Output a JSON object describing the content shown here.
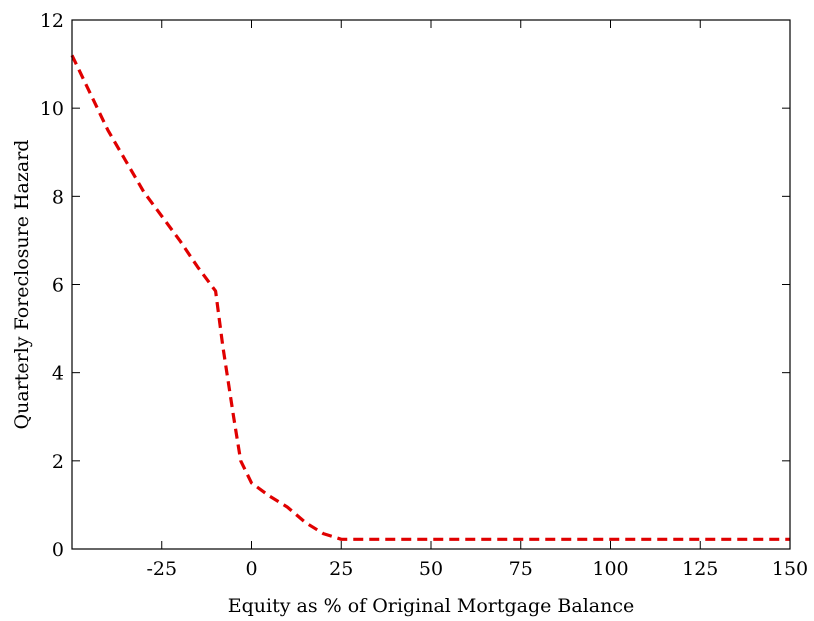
{
  "chart_data": {
    "type": "line",
    "title": "",
    "xlabel": "Equity as % of Original Mortgage Balance",
    "ylabel": "Quarterly Foreclosure Hazard",
    "xlim": [
      -50,
      150
    ],
    "ylim": [
      0,
      12
    ],
    "x_ticks": [
      -25,
      0,
      25,
      50,
      75,
      100,
      125,
      150
    ],
    "x_tick_labels": [
      "-25",
      "0",
      "25",
      "50",
      "75",
      "100",
      "125",
      "150"
    ],
    "y_ticks": [
      0,
      2,
      4,
      6,
      8,
      10,
      12
    ],
    "y_tick_labels": [
      "0",
      "2",
      "4",
      "6",
      "8",
      "10",
      "12"
    ],
    "grid": false,
    "series": [
      {
        "color": "#e00000",
        "style": "dashed",
        "x": [
          -50,
          -40,
          -30,
          -20,
          -15,
          -10,
          -8,
          -5,
          -3,
          0,
          5,
          10,
          15,
          20,
          25,
          50,
          75,
          100,
          125,
          150
        ],
        "y": [
          11.2,
          9.5,
          8.1,
          7.0,
          6.4,
          5.85,
          4.6,
          3.0,
          2.0,
          1.5,
          1.2,
          0.95,
          0.6,
          0.35,
          0.22,
          0.22,
          0.22,
          0.22,
          0.22,
          0.22
        ]
      }
    ]
  }
}
